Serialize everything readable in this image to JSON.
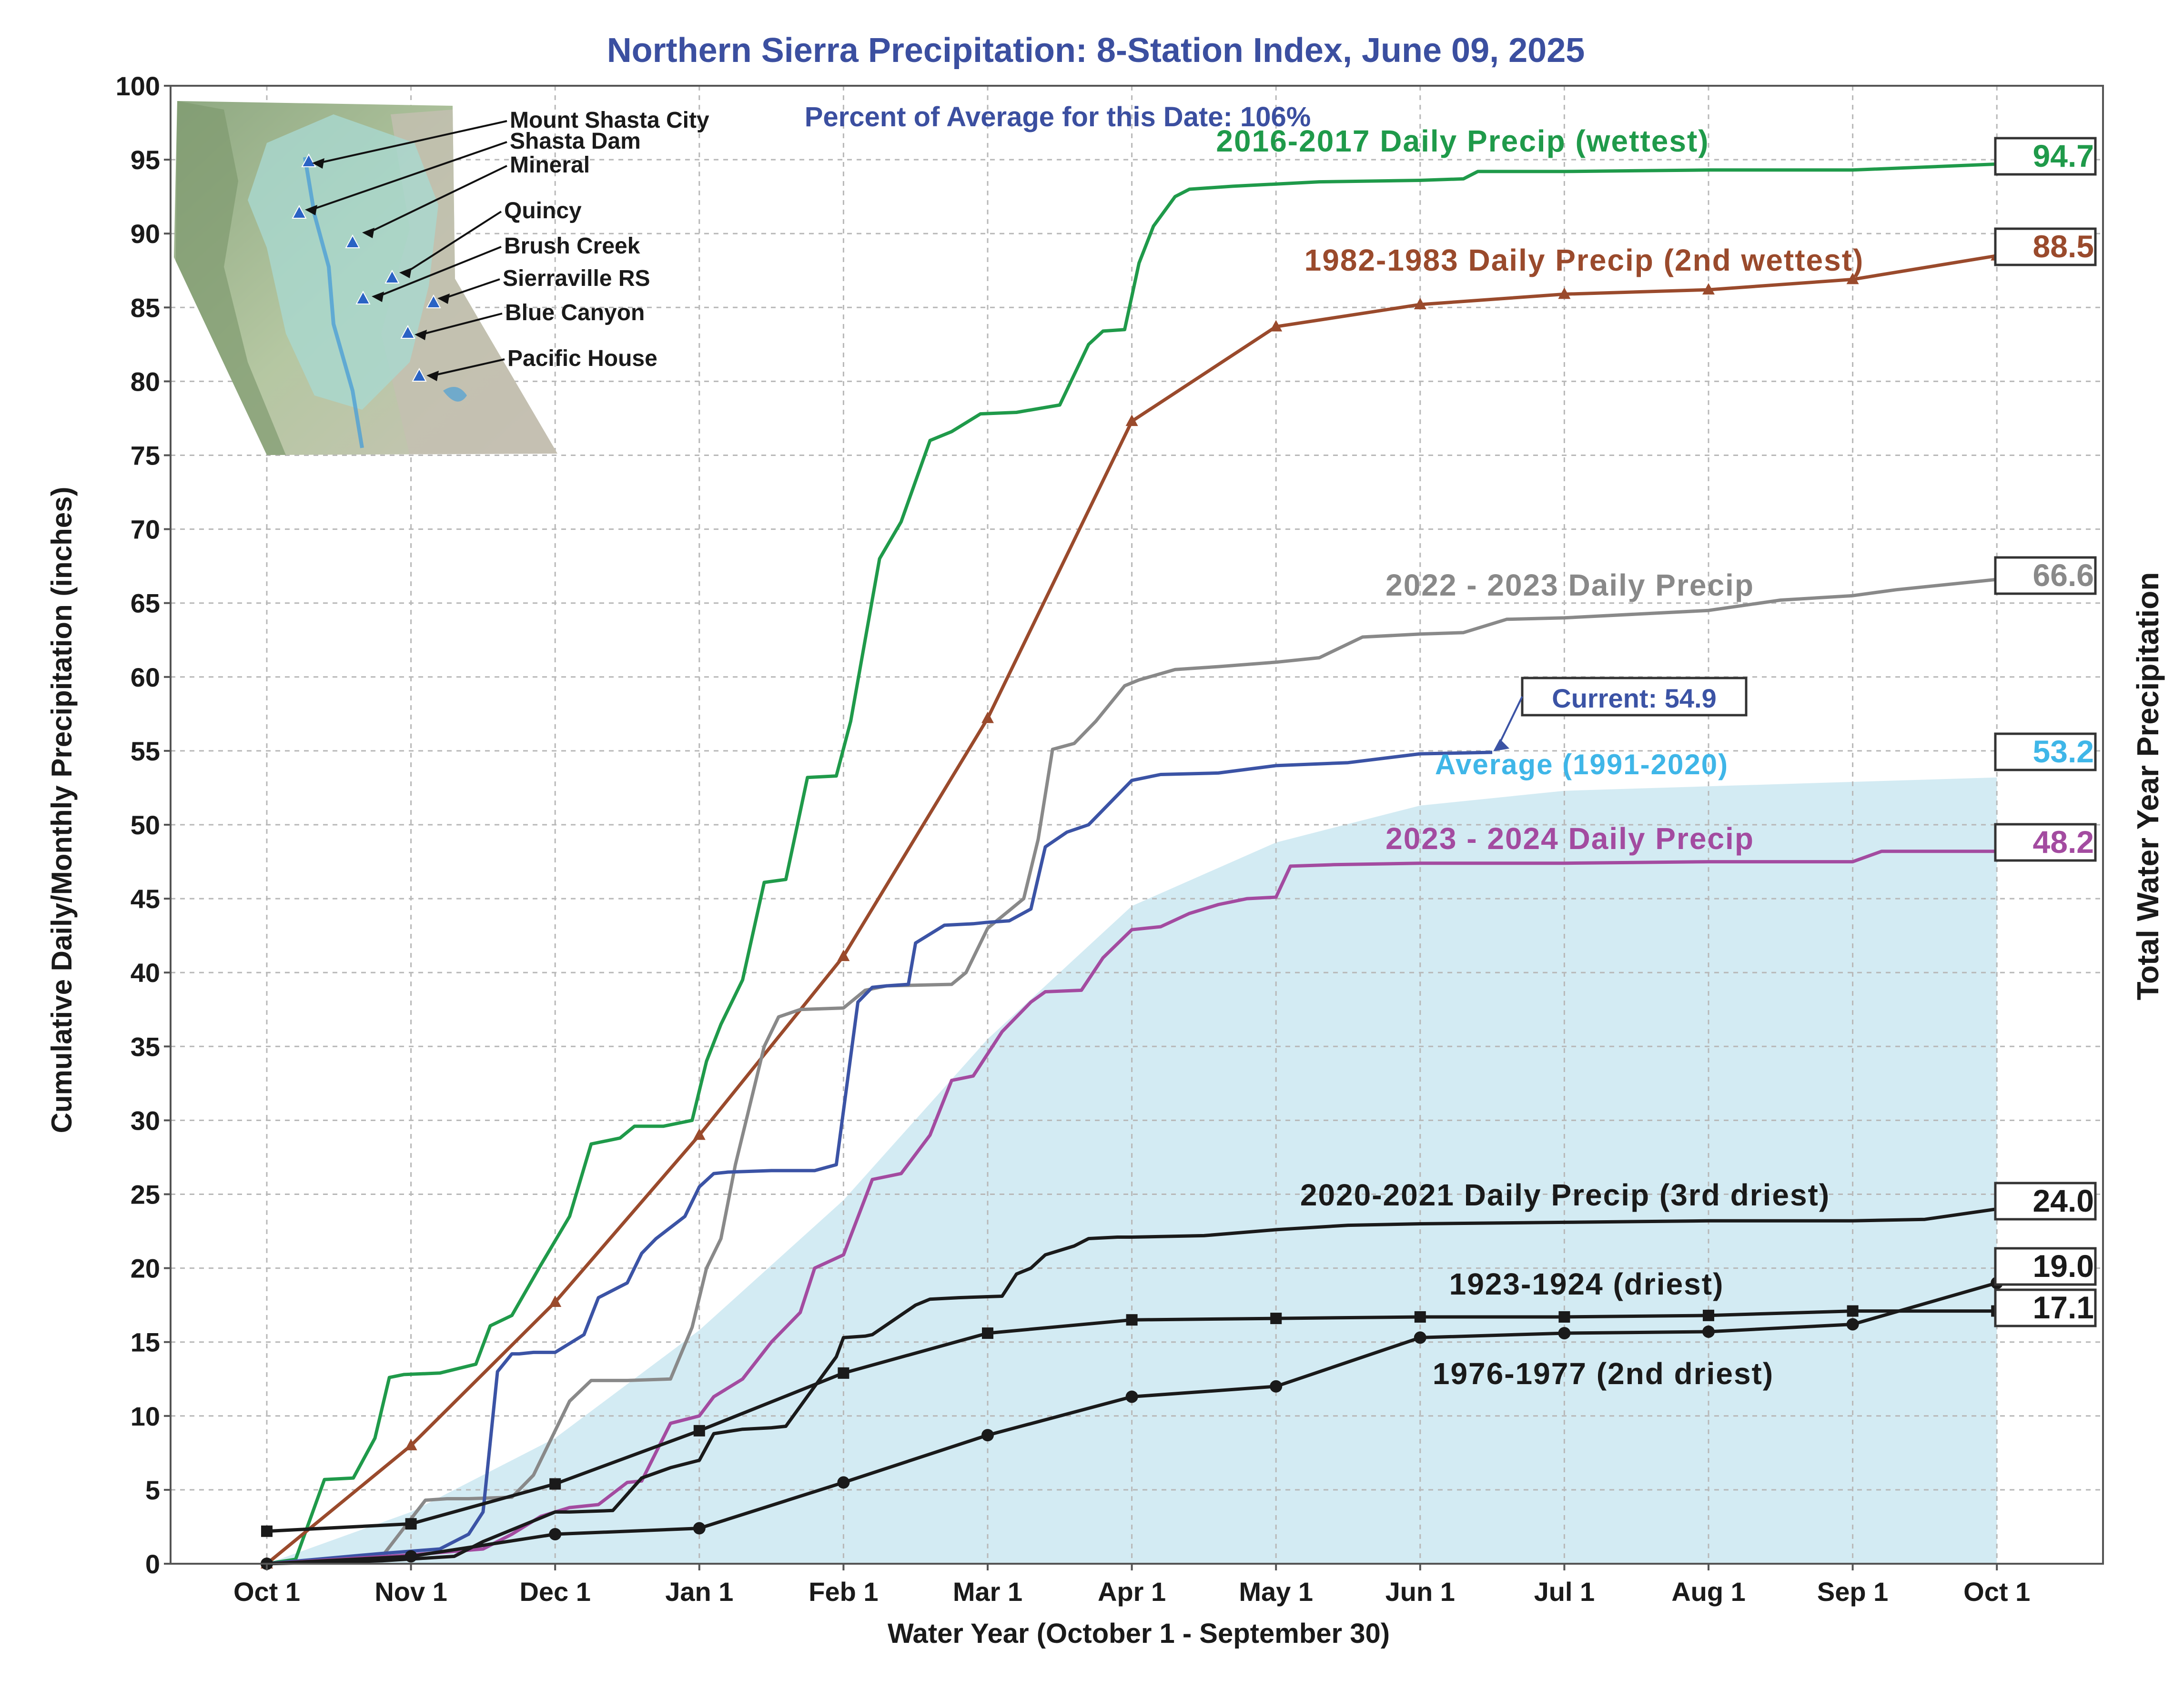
{
  "chart_data": {
    "type": "line",
    "title": "Northern Sierra Precipitation: 8-Station Index, June 09, 2025",
    "subtitle": "Percent of Average for this Date: 106%",
    "xlabel": "Water Year (October 1 - September 30)",
    "ylabel": "Cumulative Daily/Monthly Precipitation (inches)",
    "y2label": "Total Water Year Precipitation",
    "x_ticks": [
      "Oct 1",
      "Nov 1",
      "Dec 1",
      "Jan 1",
      "Feb 1",
      "Mar 1",
      "Apr 1",
      "May 1",
      "Jun 1",
      "Jul 1",
      "Aug 1",
      "Sep 1",
      "Oct 1"
    ],
    "y_ticks": [
      0,
      5,
      10,
      15,
      20,
      25,
      30,
      35,
      40,
      45,
      50,
      55,
      60,
      65,
      70,
      75,
      80,
      85,
      90,
      95,
      100
    ],
    "xlim": [
      -0.1,
      12.7
    ],
    "ylim": [
      0,
      100
    ],
    "grid": true,
    "x_unit": "months since Oct 1",
    "series": [
      {
        "name": "Average (1991-2020)",
        "label": "Average (1991-2020)",
        "total": "53.2",
        "kind": "area",
        "color": "#3fb6e8",
        "fill": "#d3ebf3",
        "x": [
          0,
          1,
          2,
          3,
          4,
          5,
          6,
          7,
          8,
          9,
          10,
          11,
          12
        ],
        "y": [
          0,
          3.5,
          8.5,
          15.8,
          24.6,
          35.5,
          44.5,
          48.8,
          51.3,
          52.3,
          52.6,
          52.9,
          53.2
        ]
      },
      {
        "name": "2016-2017 Daily Precip (wettest)",
        "label": "2016-2017 Daily Precip (wettest)",
        "total": "94.7",
        "kind": "line",
        "color": "#1f9a4a",
        "marker": "none",
        "x": [
          0,
          0.2,
          0.4,
          0.6,
          0.75,
          0.85,
          0.95,
          1.2,
          1.45,
          1.55,
          1.7,
          1.9,
          2.1,
          2.25,
          2.45,
          2.55,
          2.75,
          2.95,
          3.05,
          3.15,
          3.3,
          3.45,
          3.6,
          3.75,
          3.95,
          4.05,
          4.25,
          4.4,
          4.6,
          4.75,
          4.95,
          5.2,
          5.5,
          5.7,
          5.8,
          5.95,
          6.05,
          6.15,
          6.3,
          6.4,
          6.55,
          6.7,
          6.9,
          7.1,
          7.3,
          8.0,
          8.3,
          8.4,
          9.0,
          10.0,
          11.0,
          12.0
        ],
        "y": [
          0,
          0.3,
          5.7,
          5.8,
          8.5,
          12.6,
          12.8,
          12.9,
          13.5,
          16.1,
          16.8,
          20.2,
          23.5,
          28.4,
          28.8,
          29.6,
          29.6,
          30.0,
          34.0,
          36.5,
          39.5,
          46.1,
          46.3,
          53.2,
          53.3,
          57.0,
          68.0,
          70.5,
          76.0,
          76.6,
          77.8,
          77.9,
          78.4,
          82.5,
          83.4,
          83.5,
          88.0,
          90.5,
          92.5,
          93.0,
          93.1,
          93.2,
          93.3,
          93.4,
          93.5,
          93.6,
          93.7,
          94.2,
          94.2,
          94.3,
          94.3,
          94.7
        ]
      },
      {
        "name": "1982-1983 Daily Precip (2nd wettest)",
        "label": "1982-1983 Daily Precip (2nd wettest)",
        "total": "88.5",
        "kind": "line",
        "color": "#9a4a2c",
        "marker": "triangle",
        "x": [
          0,
          1,
          2,
          3,
          4,
          5,
          6,
          7,
          8,
          9,
          10,
          11,
          12
        ],
        "y": [
          0,
          8.0,
          17.7,
          29.0,
          41.1,
          57.2,
          77.3,
          83.7,
          85.2,
          85.9,
          86.2,
          86.9,
          88.5
        ]
      },
      {
        "name": "2022 - 2023 Daily Precip",
        "label": "2022 - 2023 Daily Precip",
        "total": "66.6",
        "kind": "line",
        "color": "#898989",
        "marker": "none",
        "x": [
          0,
          0.8,
          1.1,
          1.25,
          1.4,
          1.7,
          1.85,
          2.0,
          2.1,
          2.25,
          2.35,
          2.5,
          2.8,
          2.95,
          3.05,
          3.15,
          3.25,
          3.45,
          3.55,
          3.7,
          4.0,
          4.15,
          4.3,
          4.75,
          4.85,
          5.0,
          5.1,
          5.25,
          5.35,
          5.45,
          5.6,
          5.75,
          5.95,
          6.05,
          6.3,
          6.6,
          7.0,
          7.3,
          7.6,
          8.0,
          8.3,
          8.6,
          9.0,
          10.0,
          10.5,
          11.0,
          11.3,
          12.0
        ],
        "y": [
          0,
          0.5,
          4.3,
          4.4,
          4.4,
          4.5,
          6.0,
          9.0,
          11.0,
          12.4,
          12.4,
          12.4,
          12.5,
          16.0,
          20.0,
          22.0,
          27.0,
          35.0,
          37.0,
          37.5,
          37.6,
          38.8,
          39.1,
          39.2,
          40.0,
          43.0,
          43.8,
          45.0,
          49.0,
          55.1,
          55.5,
          57.0,
          59.4,
          59.8,
          60.5,
          60.7,
          61.0,
          61.3,
          62.7,
          62.9,
          63.0,
          63.9,
          64.0,
          64.5,
          65.2,
          65.5,
          65.9,
          66.6
        ]
      },
      {
        "name": "Current: 54.9",
        "label": "Current: 54.9",
        "kind": "line",
        "color": "#3b53a5",
        "marker": "none",
        "x": [
          0,
          0.8,
          1.2,
          1.4,
          1.5,
          1.6,
          1.7,
          1.75,
          1.85,
          2.0,
          2.2,
          2.3,
          2.4,
          2.5,
          2.6,
          2.7,
          2.9,
          3.0,
          3.1,
          3.2,
          3.5,
          3.8,
          3.95,
          4.1,
          4.2,
          4.3,
          4.45,
          4.5,
          4.7,
          4.9,
          5.0,
          5.15,
          5.3,
          5.4,
          5.55,
          5.7,
          5.9,
          6.0,
          6.2,
          6.6,
          7.0,
          7.5,
          8.0,
          8.5
        ],
        "y": [
          0,
          0.7,
          1.0,
          2.0,
          3.5,
          13.0,
          14.2,
          14.2,
          14.3,
          14.3,
          15.5,
          18.0,
          18.5,
          19.0,
          21.0,
          22.0,
          23.5,
          25.5,
          26.4,
          26.5,
          26.6,
          26.6,
          27.0,
          38.0,
          39.0,
          39.1,
          39.2,
          42.0,
          43.2,
          43.3,
          43.4,
          43.5,
          44.3,
          48.5,
          49.5,
          50.0,
          52.0,
          53.0,
          53.4,
          53.5,
          54.0,
          54.2,
          54.8,
          54.9
        ]
      },
      {
        "name": "2023 - 2024 Daily Precip",
        "label": "2023 - 2024 Daily Precip",
        "total": "48.2",
        "kind": "line",
        "color": "#a34ba0",
        "marker": "none",
        "x": [
          0,
          1.0,
          1.5,
          1.7,
          1.9,
          2.1,
          2.3,
          2.5,
          2.6,
          2.8,
          3.0,
          3.1,
          3.3,
          3.5,
          3.7,
          3.8,
          4.0,
          4.2,
          4.4,
          4.6,
          4.75,
          4.9,
          5.0,
          5.1,
          5.3,
          5.4,
          5.65,
          5.8,
          6.0,
          6.2,
          6.4,
          6.6,
          6.8,
          7.0,
          7.1,
          7.4,
          8.0,
          9.0,
          10.0,
          11.0,
          11.2,
          12.0
        ],
        "y": [
          0,
          0.6,
          1.0,
          2.0,
          3.2,
          3.8,
          4.0,
          5.5,
          5.6,
          9.5,
          10.0,
          11.3,
          12.5,
          15.0,
          17.0,
          20.0,
          20.9,
          26.0,
          26.4,
          29.0,
          32.7,
          33.0,
          34.5,
          36.0,
          38.0,
          38.7,
          38.8,
          41.0,
          42.9,
          43.1,
          44.0,
          44.6,
          45.0,
          45.1,
          47.2,
          47.3,
          47.4,
          47.4,
          47.5,
          47.5,
          48.2,
          48.2
        ]
      },
      {
        "name": "2020-2021 Daily Precip (3rd driest)",
        "label": "2020-2021 Daily Precip (3rd driest)",
        "total": "24.0",
        "kind": "line",
        "color": "#1a1a1a",
        "marker": "none",
        "x": [
          0,
          0.8,
          1.3,
          1.5,
          2.0,
          2.1,
          2.4,
          2.6,
          2.8,
          3.0,
          3.1,
          3.3,
          3.5,
          3.6,
          3.8,
          3.95,
          4.0,
          4.15,
          4.2,
          4.35,
          4.5,
          4.6,
          4.8,
          5.1,
          5.2,
          5.3,
          5.4,
          5.6,
          5.7,
          5.9,
          6.0,
          6.5,
          7.0,
          7.5,
          8.0,
          9.0,
          10.0,
          11.0,
          11.5,
          12.0
        ],
        "y": [
          0,
          0.2,
          0.5,
          1.5,
          3.5,
          3.5,
          3.6,
          5.8,
          6.5,
          7.0,
          8.8,
          9.1,
          9.2,
          9.3,
          12.0,
          14.0,
          15.3,
          15.4,
          15.5,
          16.5,
          17.5,
          17.9,
          18.0,
          18.1,
          19.6,
          20.0,
          20.9,
          21.5,
          22.0,
          22.1,
          22.1,
          22.2,
          22.6,
          22.9,
          23.0,
          23.1,
          23.2,
          23.2,
          23.3,
          24.0
        ]
      },
      {
        "name": "1923-1924 (driest)",
        "label": "1923-1924 (driest)",
        "total": "17.1",
        "kind": "line",
        "color": "#1a1a1a",
        "marker": "square",
        "x": [
          0,
          1,
          2,
          3,
          4,
          5,
          6,
          7,
          8,
          9,
          10,
          11,
          12
        ],
        "y": [
          2.2,
          2.7,
          5.4,
          9.0,
          12.9,
          15.6,
          16.5,
          16.6,
          16.7,
          16.7,
          16.8,
          17.1,
          17.1
        ]
      },
      {
        "name": "1976-1977 (2nd driest)",
        "label": "1976-1977 (2nd driest)",
        "total": "19.0",
        "kind": "line",
        "color": "#1a1a1a",
        "marker": "circle",
        "x": [
          0,
          1,
          2,
          3,
          4,
          5,
          6,
          7,
          8,
          9,
          10,
          11,
          12
        ],
        "y": [
          0,
          0.5,
          2.0,
          2.4,
          5.5,
          8.7,
          11.3,
          12.0,
          15.3,
          15.6,
          15.7,
          16.2,
          19.0
        ]
      }
    ]
  },
  "inset_map": {
    "stations": [
      "Mount Shasta City",
      "Shasta Dam",
      "Mineral",
      "Quincy",
      "Brush Creek",
      "Sierraville RS",
      "Blue Canyon",
      "Pacific House"
    ]
  }
}
